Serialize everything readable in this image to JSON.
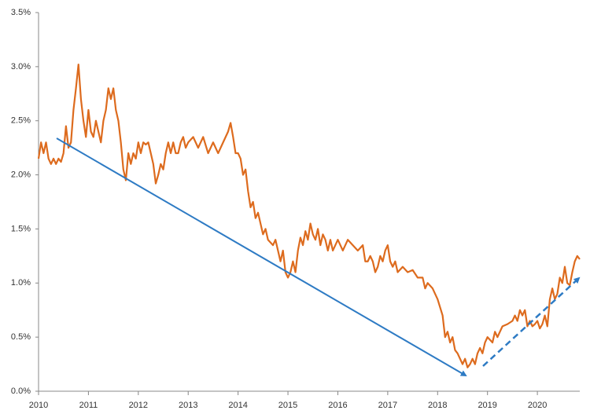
{
  "chart_data": {
    "type": "line",
    "color": "#dd6b1e",
    "grid": false,
    "xlim": [
      2010,
      2020.85
    ],
    "xticks": [
      2010,
      2011,
      2012,
      2013,
      2014,
      2015,
      2016,
      2017,
      2018,
      2019,
      2020
    ],
    "ylim": [
      0,
      3.5
    ],
    "yticks": [
      {
        "value": 0,
        "label": "0.0%"
      },
      {
        "value": 0.5,
        "label": "0.5%"
      },
      {
        "value": 1,
        "label": "1.0%"
      },
      {
        "value": 1.5,
        "label": "1.5%"
      },
      {
        "value": 2,
        "label": "2.0%"
      },
      {
        "value": 2.5,
        "label": "2.5%"
      },
      {
        "value": 3,
        "label": "3.0%"
      },
      {
        "value": 3.5,
        "label": "3.5%"
      }
    ],
    "x": [
      2010.0,
      2010.05,
      2010.1,
      2010.15,
      2010.2,
      2010.25,
      2010.3,
      2010.35,
      2010.4,
      2010.45,
      2010.5,
      2010.55,
      2010.6,
      2010.65,
      2010.7,
      2010.75,
      2010.8,
      2010.85,
      2010.9,
      2010.95,
      2011.0,
      2011.05,
      2011.1,
      2011.15,
      2011.2,
      2011.25,
      2011.3,
      2011.35,
      2011.4,
      2011.45,
      2011.5,
      2011.55,
      2011.6,
      2011.65,
      2011.7,
      2011.75,
      2011.8,
      2011.85,
      2011.9,
      2011.95,
      2012.0,
      2012.05,
      2012.1,
      2012.15,
      2012.2,
      2012.25,
      2012.3,
      2012.35,
      2012.4,
      2012.45,
      2012.5,
      2012.55,
      2012.6,
      2012.65,
      2012.7,
      2012.75,
      2012.8,
      2012.85,
      2012.9,
      2012.95,
      2013.0,
      2013.1,
      2013.2,
      2013.3,
      2013.4,
      2013.5,
      2013.6,
      2013.7,
      2013.8,
      2013.85,
      2013.9,
      2013.95,
      2014.0,
      2014.05,
      2014.1,
      2014.15,
      2014.2,
      2014.25,
      2014.3,
      2014.35,
      2014.4,
      2014.5,
      2014.55,
      2014.6,
      2014.7,
      2014.75,
      2014.8,
      2014.85,
      2014.9,
      2014.95,
      2015.0,
      2015.05,
      2015.1,
      2015.15,
      2015.2,
      2015.25,
      2015.3,
      2015.35,
      2015.4,
      2015.45,
      2015.5,
      2015.55,
      2015.6,
      2015.65,
      2015.7,
      2015.75,
      2015.8,
      2015.85,
      2015.9,
      2015.95,
      2016.0,
      2016.1,
      2016.2,
      2016.3,
      2016.4,
      2016.5,
      2016.55,
      2016.6,
      2016.65,
      2016.7,
      2016.75,
      2016.8,
      2016.85,
      2016.9,
      2016.95,
      2017.0,
      2017.05,
      2017.1,
      2017.15,
      2017.2,
      2017.3,
      2017.4,
      2017.5,
      2017.6,
      2017.7,
      2017.75,
      2017.8,
      2017.9,
      2018.0,
      2018.1,
      2018.15,
      2018.2,
      2018.25,
      2018.3,
      2018.35,
      2018.4,
      2018.45,
      2018.5,
      2018.55,
      2018.6,
      2018.65,
      2018.7,
      2018.75,
      2018.8,
      2018.85,
      2018.9,
      2018.95,
      2019.0,
      2019.1,
      2019.15,
      2019.2,
      2019.3,
      2019.4,
      2019.5,
      2019.55,
      2019.6,
      2019.65,
      2019.7,
      2019.75,
      2019.8,
      2019.85,
      2019.9,
      2019.95,
      2020.0,
      2020.05,
      2020.1,
      2020.15,
      2020.2,
      2020.25,
      2020.3,
      2020.35,
      2020.4,
      2020.45,
      2020.5,
      2020.55,
      2020.6,
      2020.65,
      2020.7,
      2020.75,
      2020.8,
      2020.85
    ],
    "values": [
      2.15,
      2.3,
      2.2,
      2.3,
      2.15,
      2.1,
      2.15,
      2.1,
      2.15,
      2.12,
      2.2,
      2.45,
      2.25,
      2.3,
      2.6,
      2.8,
      3.02,
      2.7,
      2.5,
      2.35,
      2.6,
      2.4,
      2.35,
      2.5,
      2.4,
      2.3,
      2.5,
      2.6,
      2.8,
      2.7,
      2.8,
      2.6,
      2.5,
      2.3,
      2.05,
      1.95,
      2.2,
      2.1,
      2.2,
      2.15,
      2.3,
      2.2,
      2.3,
      2.28,
      2.3,
      2.2,
      2.1,
      1.92,
      2.0,
      2.1,
      2.05,
      2.2,
      2.3,
      2.2,
      2.3,
      2.2,
      2.2,
      2.3,
      2.35,
      2.25,
      2.3,
      2.35,
      2.25,
      2.35,
      2.2,
      2.3,
      2.2,
      2.3,
      2.4,
      2.48,
      2.35,
      2.2,
      2.2,
      2.15,
      2.0,
      2.05,
      1.85,
      1.7,
      1.75,
      1.6,
      1.65,
      1.45,
      1.5,
      1.4,
      1.35,
      1.4,
      1.3,
      1.2,
      1.3,
      1.1,
      1.05,
      1.1,
      1.2,
      1.1,
      1.3,
      1.42,
      1.35,
      1.48,
      1.4,
      1.55,
      1.45,
      1.4,
      1.5,
      1.35,
      1.45,
      1.4,
      1.3,
      1.4,
      1.3,
      1.35,
      1.4,
      1.3,
      1.4,
      1.35,
      1.3,
      1.35,
      1.2,
      1.2,
      1.25,
      1.2,
      1.1,
      1.15,
      1.25,
      1.2,
      1.3,
      1.35,
      1.2,
      1.15,
      1.2,
      1.1,
      1.15,
      1.1,
      1.12,
      1.05,
      1.05,
      0.95,
      1.0,
      0.95,
      0.85,
      0.7,
      0.5,
      0.55,
      0.45,
      0.5,
      0.38,
      0.35,
      0.3,
      0.25,
      0.3,
      0.22,
      0.25,
      0.3,
      0.25,
      0.35,
      0.4,
      0.35,
      0.45,
      0.5,
      0.45,
      0.55,
      0.5,
      0.6,
      0.62,
      0.65,
      0.7,
      0.65,
      0.75,
      0.7,
      0.75,
      0.6,
      0.65,
      0.6,
      0.62,
      0.65,
      0.58,
      0.62,
      0.7,
      0.6,
      0.85,
      0.95,
      0.85,
      0.9,
      1.05,
      1.0,
      1.15,
      1.0,
      0.98,
      1.1,
      1.2,
      1.25,
      1.22
    ]
  }
}
